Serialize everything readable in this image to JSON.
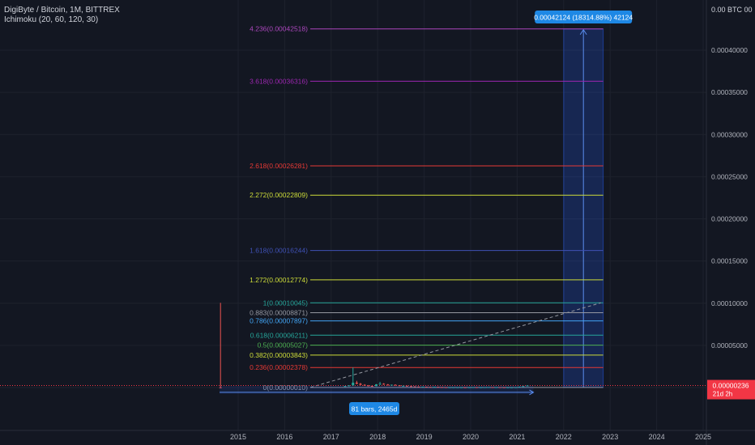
{
  "header": {
    "symbol_line": "DigiByte / Bitcoin, 1M, BITTREX",
    "indicator_line": "Ichimoku (20, 60, 120, 30)",
    "axis_unit_label": "0.00 BTC 00"
  },
  "colors": {
    "background": "#131722",
    "grid": "#1e222d",
    "axis_text": "#b2b5be",
    "accent_blue": "#2962ff",
    "label_blue": "#1e88e5",
    "price_red": "#f23645",
    "up_candle": "#26a69a",
    "down_candle": "#ef5350"
  },
  "chart_data": {
    "type": "candlestick_with_fibonacci_extension",
    "y_axis": {
      "ylim": [
        -5e-07,
        0.00044
      ],
      "ticks": [
        5e-05,
        0.0001,
        0.00015,
        0.0002,
        0.00025,
        0.0003,
        0.00035,
        0.0004
      ],
      "tick_labels": [
        "0.00005000",
        "0.00010000",
        "0.00015000",
        "0.00020000",
        "0.00025000",
        "0.00030000",
        "0.00035000",
        "0.00040000"
      ]
    },
    "x_axis": {
      "tick_labels": [
        "2015",
        "2016",
        "2017",
        "2018",
        "2019",
        "2020",
        "2021",
        "2022",
        "2023",
        "2024",
        "2025"
      ],
      "range_years": [
        2014.35,
        2025.05
      ]
    },
    "current_price": {
      "value": 2.36e-06,
      "label": "0.00000236",
      "countdown": "21d 2h"
    },
    "fib_levels": [
      {
        "ratio": "4.236",
        "label": "4.236(0.00042518)",
        "value": 0.00042518,
        "color": "#ab47bc"
      },
      {
        "ratio": "3.618",
        "label": "3.618(0.00036316)",
        "value": 0.00036316,
        "color": "#9c27b0"
      },
      {
        "ratio": "2.618",
        "label": "2.618(0.00026281)",
        "value": 0.00026281,
        "color": "#e53935"
      },
      {
        "ratio": "2.272",
        "label": "2.272(0.00022809)",
        "value": 0.00022809,
        "color": "#cddc39"
      },
      {
        "ratio": "1.618",
        "label": "1.618(0.00016244)",
        "value": 0.00016244,
        "color": "#3f51b5"
      },
      {
        "ratio": "1.272",
        "label": "1.272(0.00012774)",
        "value": 0.00012774,
        "color": "#cddc39"
      },
      {
        "ratio": "1",
        "label": "1(0.00010045)",
        "value": 0.00010045,
        "color": "#26a69a"
      },
      {
        "ratio": "0.883",
        "label": "0.883(0.00008871)",
        "value": 8.871e-05,
        "color": "#9598a1"
      },
      {
        "ratio": "0.786",
        "label": "0.786(0.00007897)",
        "value": 7.897e-05,
        "color": "#42a5f5"
      },
      {
        "ratio": "0.618",
        "label": "0.618(0.00006211)",
        "value": 6.211e-05,
        "color": "#26a69a"
      },
      {
        "ratio": "0.5",
        "label": "0.5(0.00005027)",
        "value": 5.027e-05,
        "color": "#4caf50"
      },
      {
        "ratio": "0.382",
        "label": "0.382(0.00003843)",
        "value": 3.843e-05,
        "color": "#cddc39"
      },
      {
        "ratio": "0.236",
        "label": "0.236(0.00002378)",
        "value": 2.378e-05,
        "color": "#e53935"
      },
      {
        "ratio": "0",
        "label": "0(0.00000010)",
        "value": 1e-07,
        "color": "#9598a1"
      }
    ],
    "fib_span_years": [
      2016.55,
      2022.85
    ],
    "trend_line": {
      "from": [
        2016.55,
        1e-07
      ],
      "to": [
        2022.8,
        0.00010045
      ]
    },
    "price_range_box": {
      "years": [
        2022.0,
        2022.85
      ],
      "low": 1e-07,
      "high": 0.00042518,
      "label": "0.00042124 (18314.88%) 42124"
    },
    "bars_measure": {
      "years": [
        2014.6,
        2021.35
      ],
      "value": 1e-07,
      "label": "81 bars, 2465d"
    },
    "candles": [
      {
        "year": 2014.62,
        "open": 2e-07,
        "high": 0.00010045,
        "low": 1e-07,
        "close": 1e-07
      },
      {
        "year": 2017.3,
        "open": 9e-07,
        "high": 2e-06,
        "low": 7e-07,
        "close": 1.8e-06
      },
      {
        "year": 2017.38,
        "open": 1.8e-06,
        "high": 2.8e-06,
        "low": 1.5e-06,
        "close": 2.5e-06
      },
      {
        "year": 2017.47,
        "open": 2.5e-06,
        "high": 2.378e-05,
        "low": 2.2e-06,
        "close": 5.8e-06
      },
      {
        "year": 2017.55,
        "open": 5.8e-06,
        "high": 8e-06,
        "low": 4e-06,
        "close": 4.5e-06
      },
      {
        "year": 2017.63,
        "open": 4.5e-06,
        "high": 5.5e-06,
        "low": 3e-06,
        "close": 3.2e-06
      },
      {
        "year": 2017.72,
        "open": 3.2e-06,
        "high": 4e-06,
        "low": 2.2e-06,
        "close": 2.4e-06
      },
      {
        "year": 2017.8,
        "open": 2.4e-06,
        "high": 3e-06,
        "low": 1.6e-06,
        "close": 1.9e-06
      },
      {
        "year": 2017.88,
        "open": 1.9e-06,
        "high": 2.5e-06,
        "low": 1.5e-06,
        "close": 1.7e-06
      },
      {
        "year": 2017.97,
        "open": 1.7e-06,
        "high": 4.2e-06,
        "low": 1.5e-06,
        "close": 3.8e-06
      },
      {
        "year": 2018.05,
        "open": 3.8e-06,
        "high": 6.8e-06,
        "low": 3.2e-06,
        "close": 4.5e-06
      },
      {
        "year": 2018.13,
        "open": 4.5e-06,
        "high": 5.2e-06,
        "low": 3.3e-06,
        "close": 3.6e-06
      },
      {
        "year": 2018.22,
        "open": 3.6e-06,
        "high": 4.2e-06,
        "low": 2.5e-06,
        "close": 2.8e-06
      },
      {
        "year": 2018.3,
        "open": 2.8e-06,
        "high": 3.5e-06,
        "low": 2.4e-06,
        "close": 3.3e-06
      },
      {
        "year": 2018.38,
        "open": 3.3e-06,
        "high": 3.8e-06,
        "low": 2.4e-06,
        "close": 2.6e-06
      },
      {
        "year": 2018.47,
        "open": 2.6e-06,
        "high": 2.9e-06,
        "low": 1.9e-06,
        "close": 2e-06
      },
      {
        "year": 2018.55,
        "open": 2e-06,
        "high": 2.4e-06,
        "low": 1.7e-06,
        "close": 2.1e-06
      },
      {
        "year": 2018.63,
        "open": 2.1e-06,
        "high": 2.3e-06,
        "low": 1.5e-06,
        "close": 1.6e-06
      },
      {
        "year": 2018.72,
        "open": 1.6e-06,
        "high": 1.8e-06,
        "low": 1.2e-06,
        "close": 1.3e-06
      },
      {
        "year": 2018.8,
        "open": 1.3e-06,
        "high": 1.6e-06,
        "low": 1e-06,
        "close": 1.1e-06
      },
      {
        "year": 2018.88,
        "open": 1.1e-06,
        "high": 1.3e-06,
        "low": 8e-07,
        "close": 9e-07
      },
      {
        "year": 2018.97,
        "open": 9e-07,
        "high": 1.2e-06,
        "low": 8e-07,
        "close": 1e-06
      },
      {
        "year": 2019.05,
        "open": 1e-06,
        "high": 1.1e-06,
        "low": 7e-07,
        "close": 8e-07
      },
      {
        "year": 2019.13,
        "open": 8e-07,
        "high": 9e-07,
        "low": 6e-07,
        "close": 7e-07
      },
      {
        "year": 2019.22,
        "open": 7e-07,
        "high": 1.1e-06,
        "low": 6e-07,
        "close": 9e-07
      },
      {
        "year": 2019.3,
        "open": 9e-07,
        "high": 1e-06,
        "low": 5e-07,
        "close": 6e-07
      },
      {
        "year": 2019.38,
        "open": 6e-07,
        "high": 7e-07,
        "low": 3e-07,
        "close": 4e-07
      },
      {
        "year": 2019.47,
        "open": 4e-07,
        "high": 5e-07,
        "low": 3e-07,
        "close": 3e-07
      },
      {
        "year": 2019.55,
        "open": 3e-07,
        "high": 4e-07,
        "low": 2e-07,
        "close": 3e-07
      },
      {
        "year": 2019.63,
        "open": 3e-07,
        "high": 4e-07,
        "low": 2e-07,
        "close": 3e-07
      },
      {
        "year": 2019.72,
        "open": 3e-07,
        "high": 4e-07,
        "low": 2e-07,
        "close": 3e-07
      },
      {
        "year": 2019.8,
        "open": 3e-07,
        "high": 4e-07,
        "low": 2e-07,
        "close": 3e-07
      },
      {
        "year": 2019.88,
        "open": 3e-07,
        "high": 4e-07,
        "low": 2e-07,
        "close": 2e-07
      },
      {
        "year": 2019.97,
        "open": 2e-07,
        "high": 3e-07,
        "low": 2e-07,
        "close": 3e-07
      },
      {
        "year": 2020.05,
        "open": 3e-07,
        "high": 5e-07,
        "low": 3e-07,
        "close": 4e-07
      },
      {
        "year": 2020.13,
        "open": 4e-07,
        "high": 5e-07,
        "low": 3e-07,
        "close": 3e-07
      },
      {
        "year": 2020.22,
        "open": 3e-07,
        "high": 4e-07,
        "low": 2e-07,
        "close": 3e-07
      },
      {
        "year": 2020.3,
        "open": 3e-07,
        "high": 5e-07,
        "low": 3e-07,
        "close": 4e-07
      },
      {
        "year": 2020.38,
        "open": 4e-07,
        "high": 6e-07,
        "low": 4e-07,
        "close": 5e-07
      },
      {
        "year": 2020.47,
        "open": 5e-07,
        "high": 6e-07,
        "low": 4e-07,
        "close": 4e-07
      },
      {
        "year": 2020.55,
        "open": 4e-07,
        "high": 5e-07,
        "low": 3e-07,
        "close": 4e-07
      },
      {
        "year": 2020.63,
        "open": 4e-07,
        "high": 5e-07,
        "low": 3e-07,
        "close": 3e-07
      },
      {
        "year": 2020.72,
        "open": 3e-07,
        "high": 4e-07,
        "low": 2e-07,
        "close": 2e-07
      },
      {
        "year": 2020.8,
        "open": 2e-07,
        "high": 3e-07,
        "low": 2e-07,
        "close": 2e-07
      },
      {
        "year": 2020.88,
        "open": 2e-07,
        "high": 3e-07,
        "low": 1e-07,
        "close": 2e-07
      },
      {
        "year": 2020.97,
        "open": 2e-07,
        "high": 3e-07,
        "low": 1e-07,
        "close": 3e-07
      },
      {
        "year": 2021.05,
        "open": 3e-07,
        "high": 1.2e-06,
        "low": 3e-07,
        "close": 1e-06
      },
      {
        "year": 2021.13,
        "open": 1e-06,
        "high": 1.8e-06,
        "low": 9e-07,
        "close": 1.6e-06
      },
      {
        "year": 2021.22,
        "open": 1.6e-06,
        "high": 2.8e-06,
        "low": 1.5e-06,
        "close": 2.4e-06
      }
    ]
  }
}
